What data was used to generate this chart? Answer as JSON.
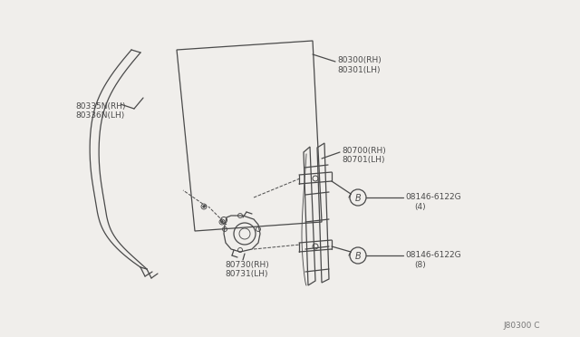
{
  "bg_color": "#f0eeeb",
  "line_color": "#4a4a4a",
  "text_color": "#4a4a4a",
  "diagram_code": "J80300 C",
  "labels": {
    "sash_rh": "80335N(RH)",
    "sash_lh": "80336N(LH)",
    "glass_rh": "80300(RH)",
    "glass_lh": "80301(LH)",
    "regulator_rh": "80700(RH)",
    "regulator_lh": "80701(LH)",
    "motor_rh": "80730(RH)",
    "motor_lh": "80731(LH)",
    "bolt1": "08146-6122G",
    "bolt1_qty": "(4)",
    "bolt2": "08146-6122G",
    "bolt2_qty": "(8)"
  }
}
